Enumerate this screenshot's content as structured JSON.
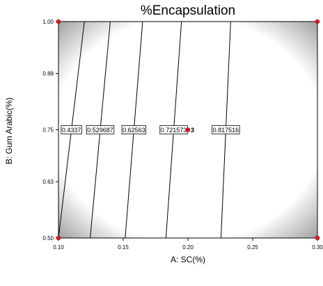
{
  "chart_data": {
    "type": "contour",
    "title": "%Encapsulation",
    "xlabel": "A: SC(%)",
    "ylabel": "B: Gum Arabic(%)",
    "xlim": [
      0.1,
      0.3
    ],
    "ylim": [
      0.5,
      1.0
    ],
    "x_ticks": [
      "0.10",
      "0.15",
      "0.20",
      "0.25",
      "0.30"
    ],
    "y_ticks": [
      "0.50",
      "0.63",
      "0.75",
      "0.88",
      "1.00"
    ],
    "contours": [
      {
        "label": "0.4337",
        "x_at_bottom": 0.1,
        "x_at_top": 0.12,
        "label_y": 0.75
      },
      {
        "label": "0.529687",
        "x_at_bottom": 0.1245,
        "x_at_top": 0.14,
        "label_y": 0.75
      },
      {
        "label": "0.62563",
        "x_at_bottom": 0.1515,
        "x_at_top": 0.165,
        "label_y": 0.75
      },
      {
        "label": "0.721573",
        "x_at_bottom": 0.183,
        "x_at_top": 0.195,
        "label_y": 0.75
      },
      {
        "label": "0.817516",
        "x_at_bottom": 0.2255,
        "x_at_top": 0.233,
        "label_y": 0.75
      }
    ],
    "design_points": [
      {
        "x": 0.1,
        "y": 1.0
      },
      {
        "x": 0.3,
        "y": 1.0
      },
      {
        "x": 0.1,
        "y": 0.5
      },
      {
        "x": 0.3,
        "y": 0.5
      },
      {
        "x": 0.2,
        "y": 0.75,
        "label": "3"
      }
    ],
    "point_color": "#e8141e",
    "grid": false
  }
}
